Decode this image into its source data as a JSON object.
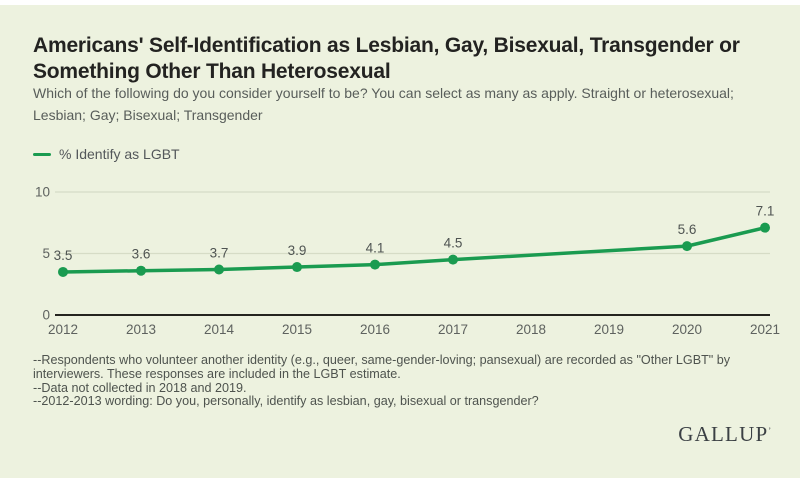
{
  "colors": {
    "background": "#edf2df",
    "line": "#1a9b50",
    "axis": "#24241f",
    "grid": "#d6dcc6",
    "title_text": "#232321",
    "gray_text": "#585d5a"
  },
  "header": {
    "title": "Americans' Self-Identification as Lesbian, Gay, Bisexual, Transgender or Something Other Than Heterosexual",
    "subtitle": "Which of the following do you consider yourself to be? You can select as many as apply. Straight or heterosexual; Lesbian; Gay; Bisexual; Transgender"
  },
  "legend": {
    "label": "% Identify as LGBT",
    "color": "#1a9b50"
  },
  "chart_data": {
    "type": "line",
    "title": "Americans' Self-Identification as Lesbian, Gay, Bisexual, Transgender or Something Other Than Heterosexual",
    "categories": [
      "2012",
      "2013",
      "2014",
      "2015",
      "2016",
      "2017",
      "2018",
      "2019",
      "2020",
      "2021"
    ],
    "series": [
      {
        "name": "% Identify as LGBT",
        "values": [
          3.5,
          3.6,
          3.7,
          3.9,
          4.1,
          4.5,
          null,
          null,
          5.6,
          7.1
        ],
        "color": "#1a9b50"
      }
    ],
    "xlabel": "",
    "ylabel": "",
    "ylim": [
      0,
      10
    ],
    "yticks": [
      0,
      5,
      10
    ],
    "grid": "horizontal",
    "legend_position": "top-left",
    "notes": "No data points for 2018 and 2019; line connects 2017 directly to 2020"
  },
  "footnotes": [
    "--Respondents who volunteer another identity (e.g., queer, same-gender-loving; pansexual) are recorded as \"Other LGBT\" by interviewers. These responses are included in the LGBT estimate.",
    "--Data not collected in 2018 and 2019.",
    "--2012-2013 wording: Do you, personally, identify as lesbian, gay, bisexual or transgender?"
  ],
  "brand": {
    "logo_text": "GALLUP",
    "trademark": "’"
  }
}
